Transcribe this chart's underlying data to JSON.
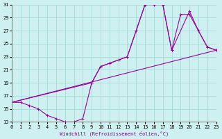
{
  "xlabel": "Windchill (Refroidissement éolien,°C)",
  "bg_color": "#cef0f0",
  "grid_color": "#aadddd",
  "line_color": "#990099",
  "xlim": [
    0,
    23
  ],
  "ylim": [
    13,
    31
  ],
  "xticks": [
    0,
    1,
    2,
    3,
    4,
    5,
    6,
    7,
    8,
    9,
    10,
    11,
    12,
    13,
    14,
    15,
    16,
    17,
    18,
    19,
    20,
    21,
    22,
    23
  ],
  "yticks": [
    13,
    15,
    17,
    19,
    21,
    23,
    25,
    27,
    29,
    31
  ],
  "line1_x": [
    0,
    1,
    2,
    3,
    4,
    5,
    6,
    7,
    8,
    9,
    10,
    11,
    12,
    13,
    14,
    15,
    16,
    17,
    18,
    19,
    20,
    21,
    22,
    23
  ],
  "line1_y": [
    16,
    16,
    15.5,
    15,
    14,
    13.5,
    13,
    13,
    13.5,
    19,
    21.5,
    22,
    22.5,
    23,
    27,
    31,
    31,
    31,
    24,
    29.5,
    29.5,
    27,
    24.5,
    24
  ],
  "line2_x": [
    0,
    9,
    10,
    11,
    12,
    13,
    14,
    15,
    16,
    17,
    18,
    20,
    21,
    22,
    23
  ],
  "line2_y": [
    16,
    19,
    21.5,
    22,
    22.5,
    23,
    27,
    31,
    31.5,
    31,
    24,
    30,
    27,
    24.5,
    24
  ]
}
